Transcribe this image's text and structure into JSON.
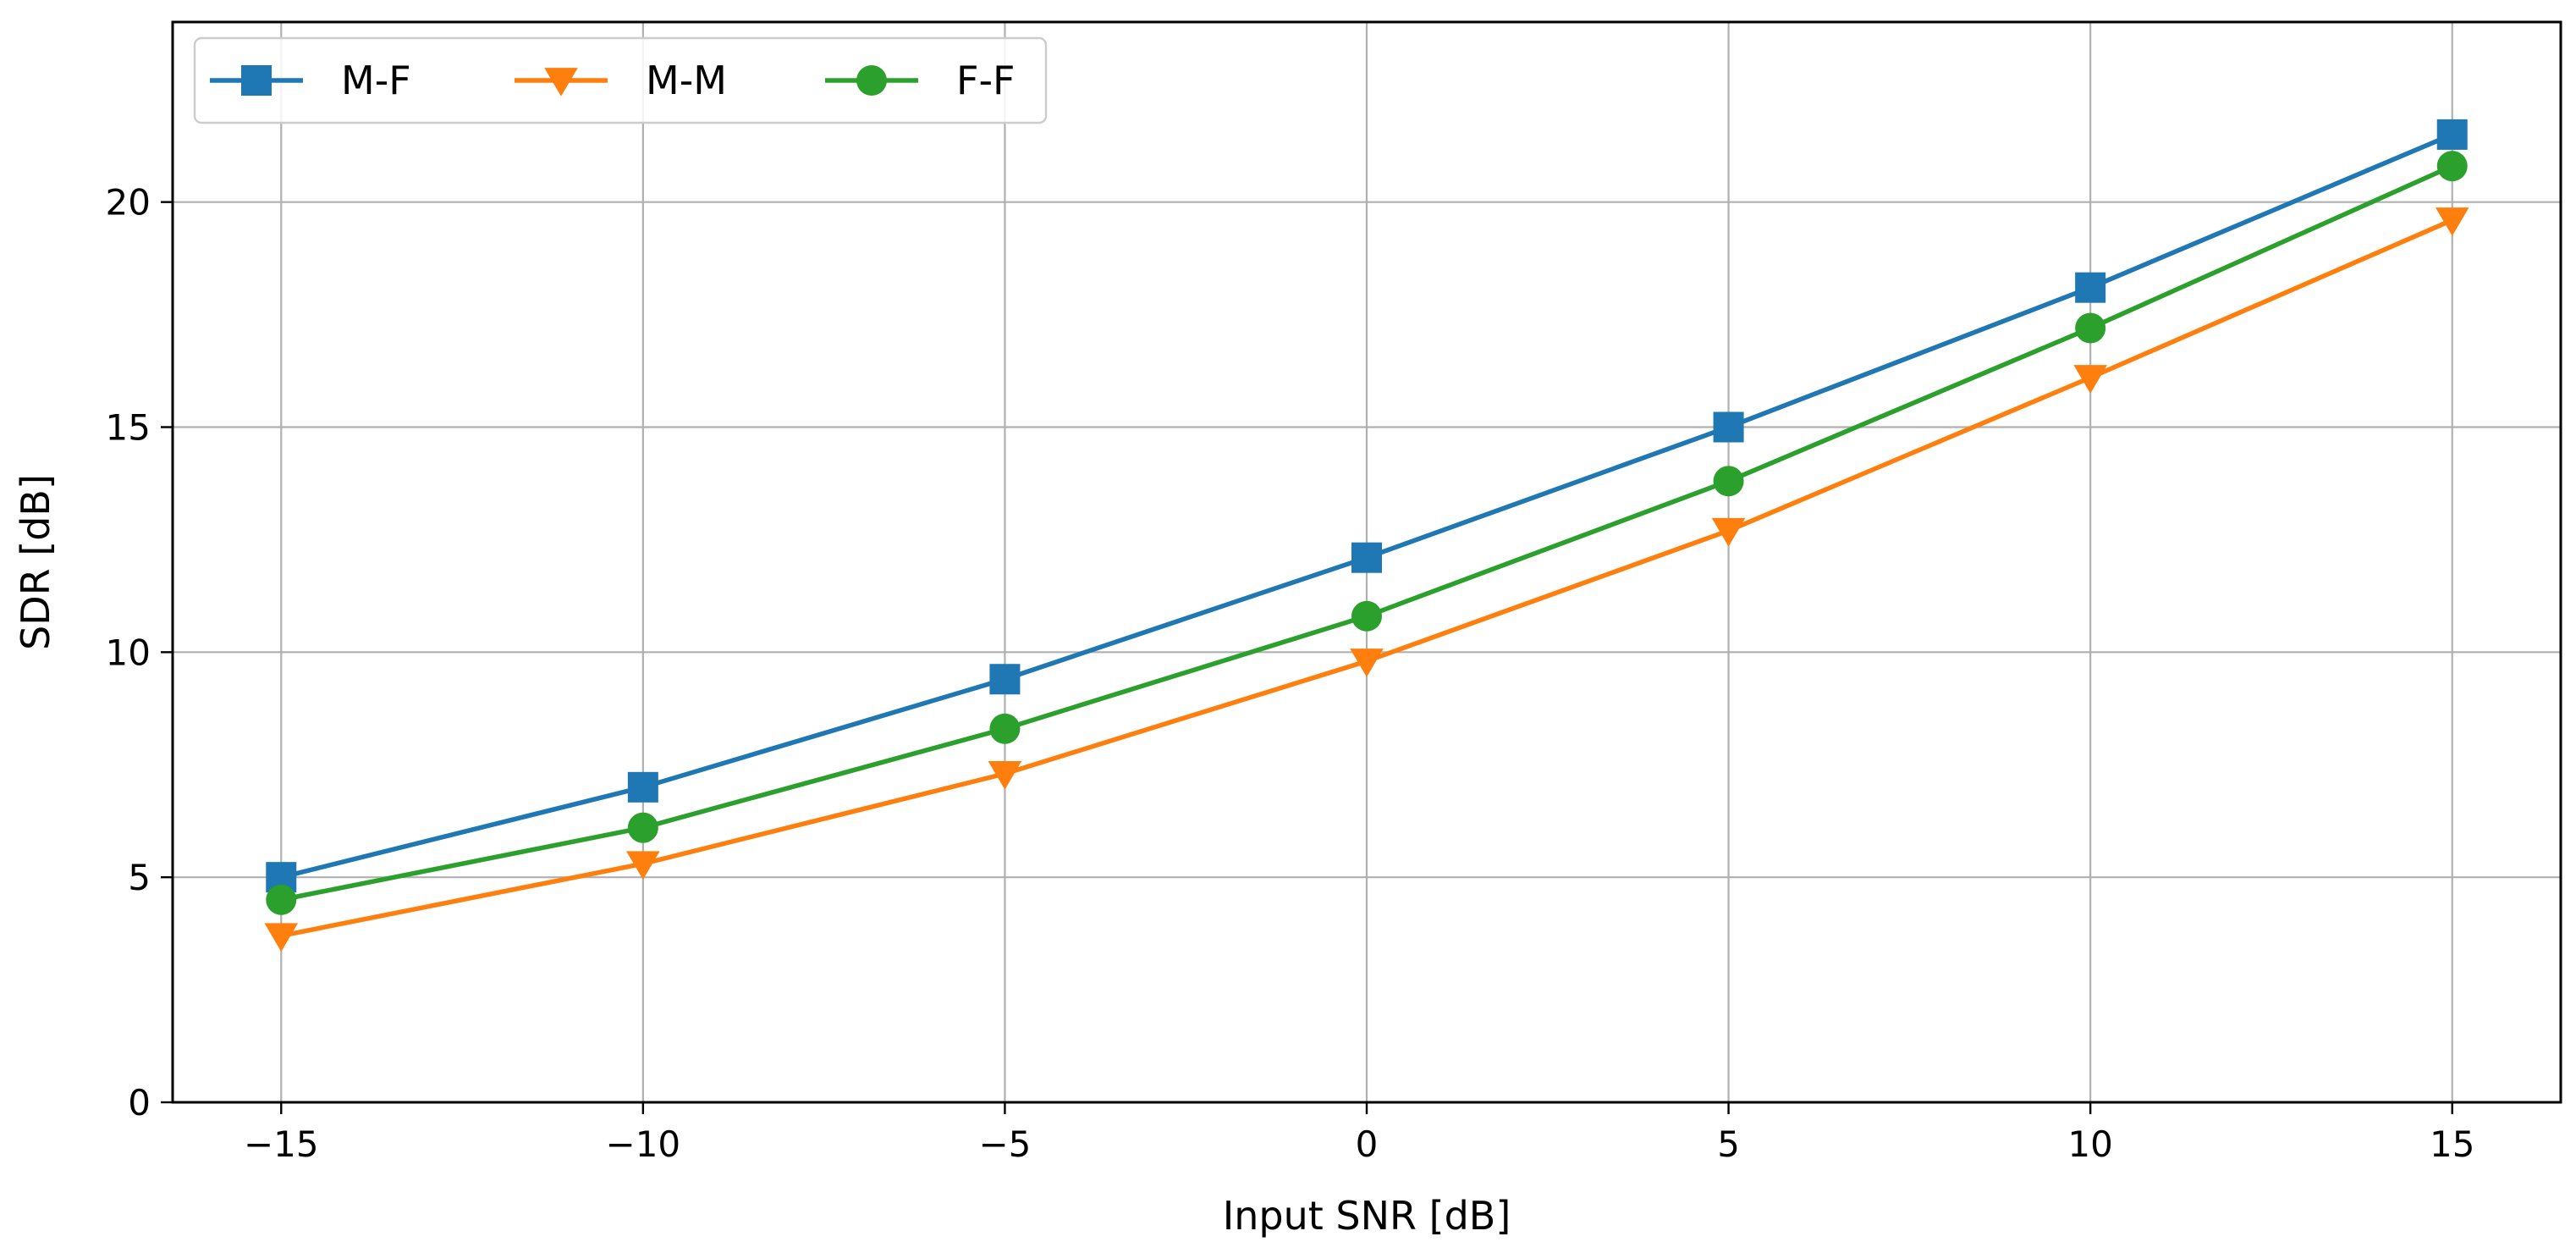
{
  "chart_data": {
    "type": "line",
    "title": "",
    "xlabel": "Input SNR [dB]",
    "ylabel": "SDR [dB]",
    "x": [
      -15,
      -10,
      -5,
      0,
      5,
      10,
      15
    ],
    "xlim": [
      -16.5,
      16.5
    ],
    "ylim": [
      0,
      24
    ],
    "xticks": [
      -15,
      -10,
      -5,
      0,
      5,
      10,
      15
    ],
    "xtick_labels": [
      "−15",
      "−10",
      "−5",
      "0",
      "5",
      "10",
      "15"
    ],
    "yticks": [
      0,
      5,
      10,
      15,
      20
    ],
    "ytick_labels": [
      "0",
      "5",
      "10",
      "15",
      "20"
    ],
    "grid": true,
    "legend_position": "top-left",
    "series": [
      {
        "name": "M-F",
        "color": "#1f77b4",
        "marker": "square",
        "values": [
          5.0,
          7.0,
          9.4,
          12.1,
          15.0,
          18.1,
          21.5
        ]
      },
      {
        "name": "M-M",
        "color": "#ff7f0e",
        "marker": "triangle-down",
        "values": [
          3.7,
          5.3,
          7.3,
          9.8,
          12.7,
          16.1,
          19.6
        ]
      },
      {
        "name": "F-F",
        "color": "#2ca02c",
        "marker": "circle",
        "values": [
          4.5,
          6.1,
          8.3,
          10.8,
          13.8,
          17.2,
          20.8
        ]
      }
    ]
  }
}
